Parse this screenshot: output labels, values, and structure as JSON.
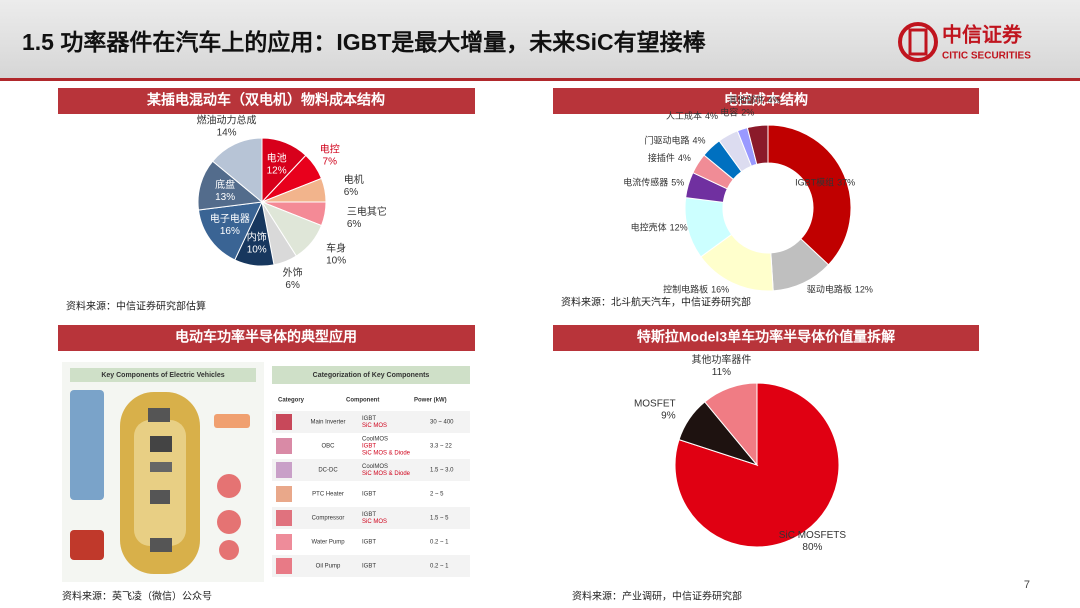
{
  "header": {
    "title": "1.5 功率器件在汽车上的应用：IGBT是最大增量，未来SiC有望接棒",
    "logo": "中信证券",
    "logo_en": "CITIC SECURITIES"
  },
  "page_number": "7",
  "chart_data": [
    {
      "type": "pie",
      "title": "某插电混动车（双电机）物料成本结构",
      "source": "资料来源：中信证券研究部估算",
      "categories": [
        "电池",
        "电控",
        "电机",
        "三电其它",
        "车身",
        "外饰",
        "内饰",
        "电子电器",
        "底盘",
        "燃油动力总成"
      ],
      "values": [
        12,
        7,
        6,
        6,
        10,
        6,
        10,
        16,
        13,
        14
      ],
      "value_labels": [
        "12%",
        "7%",
        "6%",
        "6%",
        "10%",
        "6%",
        "10%",
        "16%",
        "13%",
        "14%"
      ],
      "colors": [
        "#d7001b",
        "#e8001c",
        "#f2b48c",
        "#f48a96",
        "#dfe6d8",
        "#d9d9d9",
        "#17375e",
        "#3a6494",
        "#536c8c",
        "#b7c4d6"
      ]
    },
    {
      "type": "doughnut",
      "title": "电控成本结构",
      "source": "资料来源：北斗航天汽车，中信证券研究部",
      "categories": [
        "IGBT模组",
        "驱动电路板",
        "控制电路板",
        "电控壳体",
        "电流传感器",
        "接插件",
        "门驱动电路",
        "人工成本",
        "电容",
        "其他部件"
      ],
      "values": [
        37,
        12,
        16,
        12,
        5,
        4,
        4,
        4,
        2,
        4
      ],
      "value_labels": [
        "37%",
        "12%",
        "16%",
        "12%",
        "5%",
        "4%",
        "4%",
        "4%",
        "2%",
        "4%"
      ],
      "colors": [
        "#c00000",
        "#bfbfbf",
        "#ffffcc",
        "#ccffff",
        "#7030a0",
        "#f08c96",
        "#0070c0",
        "#dcdcf0",
        "#9999ff",
        "#8b1a2a"
      ]
    },
    {
      "type": "pie",
      "title": "特斯拉Model3单车功率半导体价值量拆解",
      "source": "资料来源：产业调研，中信证券研究部",
      "categories": [
        "SiC MOSFETS",
        "MOSFET",
        "其他功率器件"
      ],
      "values": [
        80,
        9,
        11
      ],
      "value_labels": [
        "80%",
        "9%",
        "11%"
      ],
      "colors": [
        "#e00012",
        "#1e1210",
        "#f07c84"
      ]
    }
  ],
  "figure": {
    "title": "电动车功率半导体的典型应用",
    "source": "资料来源：英飞凌（微信）公众号",
    "left_title": "Key Components of Electric Vehicles",
    "right_title": "Categorization of Key Components",
    "table": {
      "header": [
        "Category",
        "Component",
        "Power (kW)"
      ],
      "rows": [
        [
          "Main Inverter",
          "IGBT",
          "SiC MOS",
          "30 ~ 400"
        ],
        [
          "OBC",
          "CoolMOS",
          "IGBT",
          "SiC MOS & Diode",
          "3.3 ~ 22"
        ],
        [
          "DC-DC",
          "CoolMOS",
          "SiC MOS & Diode",
          "1.5 ~ 3.0"
        ],
        [
          "PTC Heater",
          "IGBT",
          "2 ~ 5"
        ],
        [
          "Compressor",
          "IGBT",
          "SiC MOS",
          "1.5 ~ 5"
        ],
        [
          "Water Pump",
          "IGBT",
          "0.2 ~ 1"
        ],
        [
          "Oil Pump",
          "IGBT",
          "0.2 ~ 1"
        ]
      ]
    }
  }
}
